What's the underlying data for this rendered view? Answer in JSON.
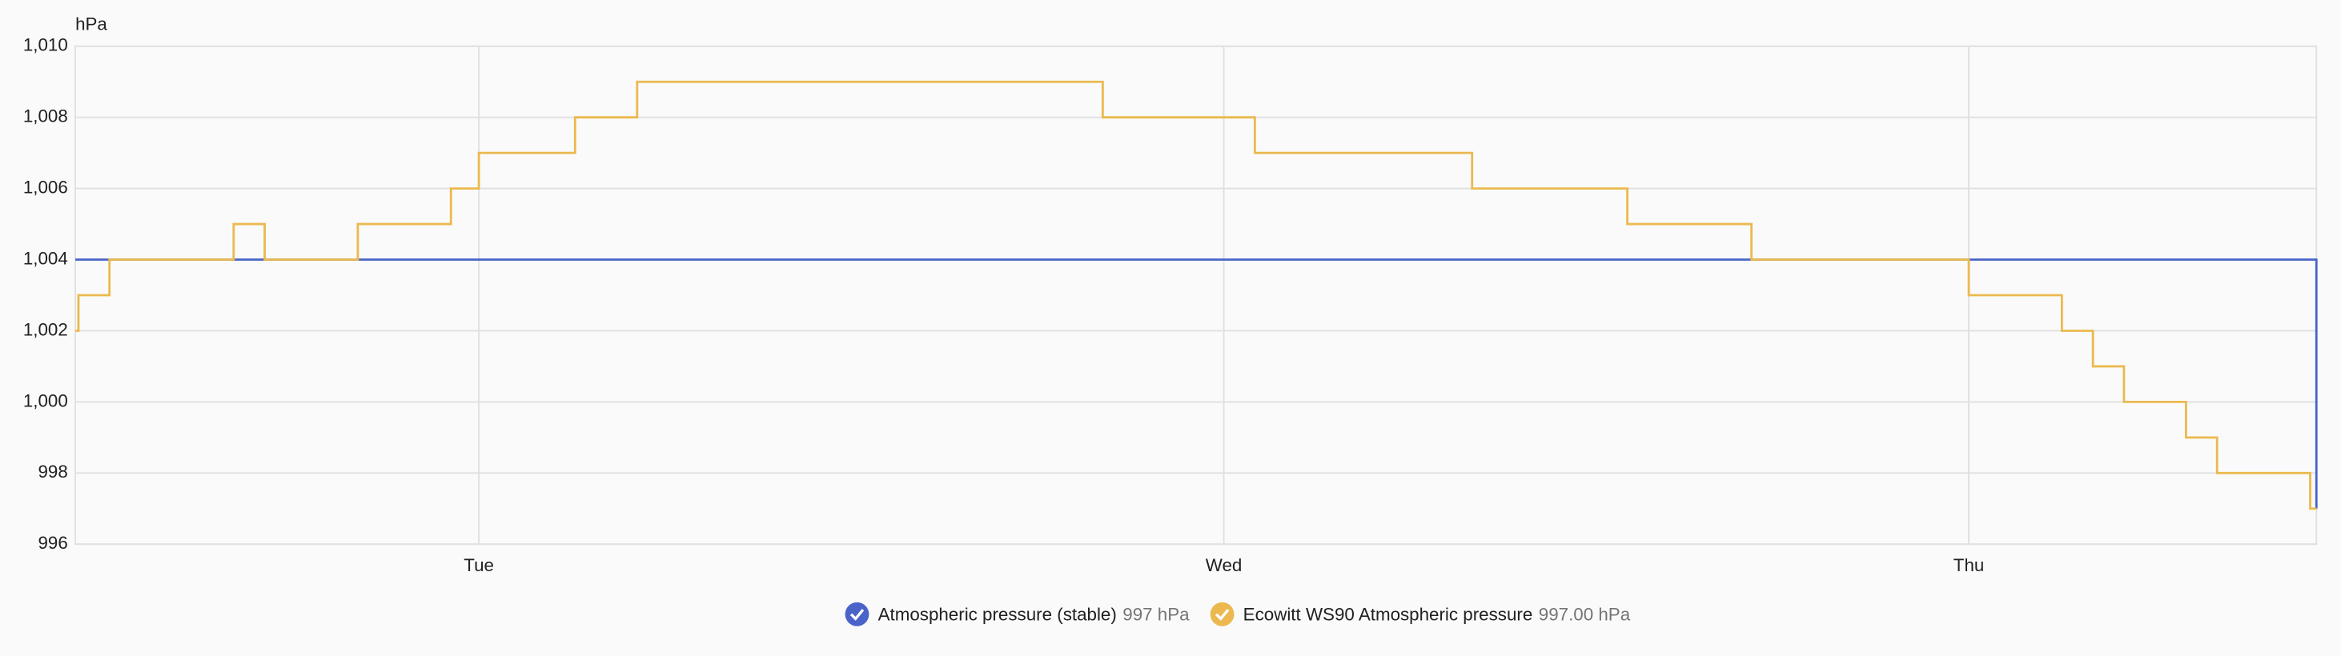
{
  "chart_data": {
    "type": "step-line",
    "unit": "hPa",
    "xlim": [
      11.0,
      83.2
    ],
    "xticks": [
      {
        "value": 24,
        "label": "Tue"
      },
      {
        "value": 48,
        "label": "Wed"
      },
      {
        "value": 72,
        "label": "Thu"
      }
    ],
    "ylim": [
      996,
      1010
    ],
    "yticks": [
      996,
      998,
      {
        "value": 1000,
        "label": "1,000"
      },
      {
        "value": 1002,
        "label": "1,002"
      },
      {
        "value": 1004,
        "label": "1,004"
      },
      {
        "value": 1006,
        "label": "1,006"
      },
      {
        "value": 1008,
        "label": "1,008"
      },
      {
        "value": 1010,
        "label": "1,010"
      }
    ],
    "grid": true,
    "series": [
      {
        "name": "Atmospheric pressure (stable)",
        "state": "997 hPa",
        "color": "#4a63c8",
        "x": [
          11.0,
          83.2
        ],
        "values": [
          1004,
          997
        ]
      },
      {
        "name": "Ecowitt WS90 Atmospheric pressure",
        "state": "997.00 hPa",
        "color": "#ebb94f",
        "x": [
          11.0,
          11.1,
          12.1,
          16.1,
          17.1,
          20.1,
          23.1,
          24.0,
          27.1,
          29.1,
          44.1,
          49.0,
          56.0,
          61.0,
          65.0,
          72.0,
          75.0,
          76.0,
          77.0,
          79.0,
          80.0,
          83.0,
          83.2
        ],
        "values": [
          1002,
          1003,
          1004,
          1005,
          1004,
          1005,
          1006,
          1007,
          1008,
          1009,
          1008,
          1007,
          1006,
          1005,
          1004,
          1003,
          1002,
          1001,
          1000,
          999,
          998,
          997,
          997
        ]
      }
    ]
  }
}
